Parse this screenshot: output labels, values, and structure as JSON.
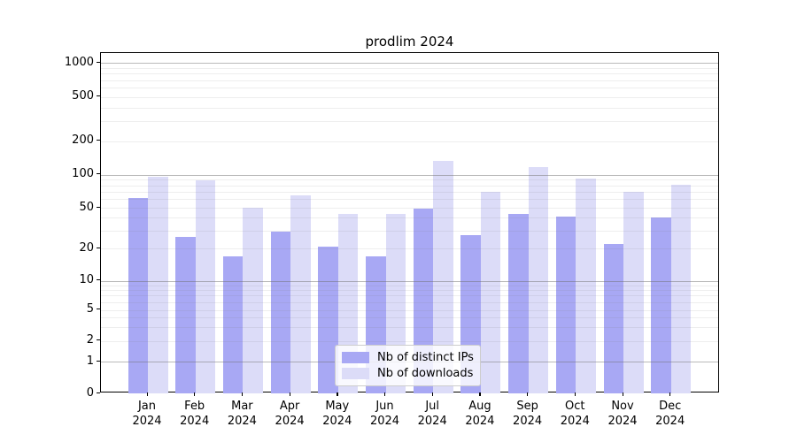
{
  "title": "prodlim 2024",
  "colors": {
    "distinct_ips_bar": "#a8a8f4",
    "downloads_bar": "#dcdcf8",
    "grid_major": "#b9b9b9",
    "grid_minor": "#ededed",
    "axis": "#000000",
    "legend_border": "#cccccc"
  },
  "axes": {
    "y_tick_labels": [
      "0",
      "1",
      "2",
      "5",
      "10",
      "20",
      "50",
      "100",
      "200",
      "500",
      "1000"
    ],
    "x_tick_months": [
      "Jan",
      "Feb",
      "Mar",
      "Apr",
      "May",
      "Jun",
      "Jul",
      "Aug",
      "Sep",
      "Oct",
      "Nov",
      "Dec"
    ],
    "x_tick_year": "2024"
  },
  "legend": {
    "items": [
      {
        "label": "Nb of distinct IPs",
        "color": "#a8a8f4"
      },
      {
        "label": "Nb of downloads",
        "color": "#dcdcf8"
      }
    ]
  },
  "chart_data": {
    "type": "bar",
    "title": "prodlim 2024",
    "categories": [
      "Jan 2024",
      "Feb 2024",
      "Mar 2024",
      "Apr 2024",
      "May 2024",
      "Jun 2024",
      "Jul 2024",
      "Aug 2024",
      "Sep 2024",
      "Oct 2024",
      "Nov 2024",
      "Dec 2024"
    ],
    "series": [
      {
        "name": "Nb of distinct IPs",
        "color": "#a8a8f4",
        "values": [
          62,
          26,
          17,
          29,
          21,
          17,
          49,
          27,
          44,
          41,
          22,
          40
        ]
      },
      {
        "name": "Nb of downloads",
        "color": "#dcdcf8",
        "values": [
          96,
          89,
          50,
          65,
          44,
          44,
          133,
          70,
          116,
          92,
          70,
          81
        ]
      }
    ],
    "xlabel": "",
    "ylabel": "",
    "y_ticks": [
      0,
      1,
      2,
      5,
      10,
      20,
      50,
      100,
      200,
      500,
      1000
    ],
    "y_scale": "log-like (1-2-5 ticks, linear segment between 0 and 1)",
    "ylim": [
      0,
      1400
    ],
    "grid": true,
    "legend_position": "lower center inside plot"
  }
}
